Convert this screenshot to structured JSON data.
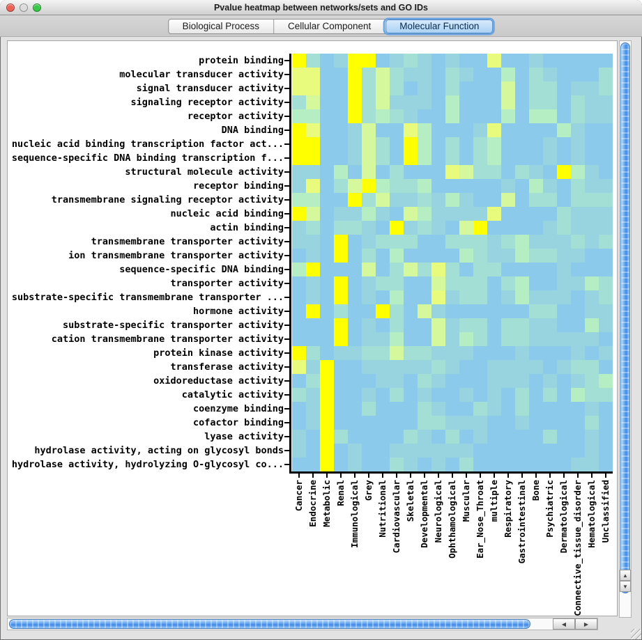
{
  "window": {
    "title": "Pvalue heatmap between networks/sets and GO IDs",
    "traffic_lights": [
      {
        "name": "close-button",
        "color": "#EE6156"
      },
      {
        "name": "minimize-button",
        "color": "#DCDCDC"
      },
      {
        "name": "zoom-button",
        "color": "#38C848"
      }
    ]
  },
  "tabs": [
    {
      "label": "Biological Process",
      "selected": false
    },
    {
      "label": "Cellular Component",
      "selected": false
    },
    {
      "label": "Molecular Function",
      "selected": true
    }
  ],
  "icons": {
    "scroll_up": "▲",
    "scroll_down": "▼",
    "scroll_left": "◀",
    "scroll_right": "▶"
  },
  "chart_data": {
    "type": "heatmap",
    "title": "Pvalue heatmap between networks/sets and GO IDs",
    "rows": [
      "protein binding",
      "molecular transducer activity",
      "signal transducer activity",
      "signaling receptor activity",
      "receptor activity",
      "DNA binding",
      "nucleic acid binding transcription factor act...",
      "sequence-specific DNA binding transcription f...",
      "structural molecule activity",
      "receptor binding",
      "transmembrane signaling receptor activity",
      "nucleic acid binding",
      "actin binding",
      "transmembrane transporter activity",
      "ion transmembrane transporter activity",
      "sequence-specific DNA binding",
      "transporter activity",
      "substrate-specific transmembrane transporter ...",
      "hormone activity",
      "substrate-specific transporter activity",
      "cation transmembrane transporter activity",
      "protein kinase activity",
      "transferase activity",
      "oxidoreductase activity",
      "catalytic activity",
      "coenzyme binding",
      "cofactor binding",
      "lyase activity",
      "hydrolase activity, acting on glycosyl bonds",
      "hydrolase activity, hydrolyzing O-glycosyl co..."
    ],
    "columns": [
      "Cancer",
      "Endocrine",
      "Metabolic",
      "Renal",
      "Immunological",
      "Grey",
      "Nutritional",
      "Cardiovascular",
      "Skeletal",
      "Developmental",
      "Neurological",
      "Ophthamological",
      "Muscular",
      "Ear_Nose_Throat",
      "multiple",
      "Respiratory",
      "Gastrointestinal",
      "Bone",
      "Psychiatric",
      "Dermatological",
      "Connective_tissue_disorder",
      "Hematological",
      "Unclassified"
    ],
    "palette": [
      "#8CCAEC",
      "#98D4E0",
      "#A3DFD4",
      "#B4EEC2",
      "#D4F89B",
      "#E9FB7D",
      "#FFFF00"
    ],
    "value_scale": "color level 0 (low, blue) to 6 (high, yellow) encoding p-value intensity",
    "values": [
      "62016601210100500100000",
      "55006242110210030210002",
      "55006242010200040220112",
      "24006241110300040220211",
      "33006232100300030330211",
      "65001400530001500003100",
      "66001420630202300010100",
      "66001420630202300010100",
      "11030402000542202106310",
      "15024632230000010310211",
      "33006241121310040220222",
      "64011310431111500002111",
      "12022106121046000012111",
      "11060122200222123111212",
      "01060203000032113221100",
      "36000402425202200001000",
      "01060122004222023001132",
      "01060103005122013111012",
      "06020062041000000220011",
      "00060102004122022110031",
      "00060113004132022111110",
      "62011224221110001000101",
      "51600111112100111101220",
      "02600011021000111010123",
      "21600102010010102020322",
      "01600200021002102000010",
      "01600000022111001000020",
      "10620000210201000020010",
      "10601001111110000000010",
      "00601002101020000000110"
    ],
    "cell_size": 20,
    "grid": false,
    "legend": false
  }
}
